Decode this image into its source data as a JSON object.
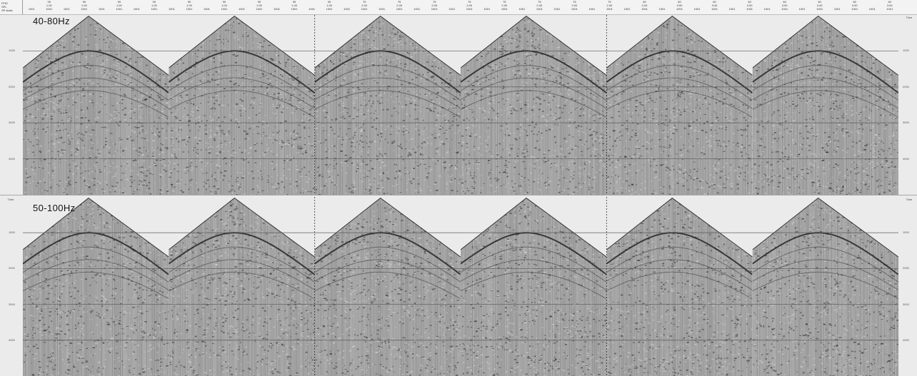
{
  "header": {
    "row_keys": [
      "FFID",
      "SPL",
      "SP static"
    ],
    "columns": [
      {
        "ffid": "",
        "spl": "",
        "sp_static": "1001"
      },
      {
        "ffid": "99",
        "spl": "1.00",
        "sp_static": "1001"
      },
      {
        "ffid": "",
        "spl": "",
        "sp_static": "1001"
      },
      {
        "ffid": "99",
        "spl": "1.00",
        "sp_static": "1001"
      },
      {
        "ffid": "",
        "spl": "",
        "sp_static": "1001"
      },
      {
        "ffid": "99",
        "spl": "1.00",
        "sp_static": "1001"
      },
      {
        "ffid": "",
        "spl": "",
        "sp_static": "1001"
      },
      {
        "ffid": "99",
        "spl": "1.00",
        "sp_static": "1001"
      },
      {
        "ffid": "",
        "spl": "",
        "sp_static": "1001"
      },
      {
        "ffid": "99",
        "spl": "1.00",
        "sp_static": "1001"
      },
      {
        "ffid": "",
        "spl": "",
        "sp_static": "1001"
      },
      {
        "ffid": "99",
        "spl": "1.00",
        "sp_static": "1001"
      },
      {
        "ffid": "",
        "spl": "",
        "sp_static": "1001"
      },
      {
        "ffid": "99",
        "spl": "1.00",
        "sp_static": "1001"
      },
      {
        "ffid": "",
        "spl": "",
        "sp_static": "1001"
      },
      {
        "ffid": "99",
        "spl": "1.00",
        "sp_static": "1001"
      },
      {
        "ffid": "",
        "spl": "",
        "sp_static": "1001"
      },
      {
        "ffid": "99",
        "spl": "1.00",
        "sp_static": "1001"
      },
      {
        "ffid": "",
        "spl": "",
        "sp_static": "1001"
      },
      {
        "ffid": "75",
        "spl": "2.00",
        "sp_static": "1001"
      },
      {
        "ffid": "",
        "spl": "",
        "sp_static": "1001"
      },
      {
        "ffid": "75",
        "spl": "2.00",
        "sp_static": "1001"
      },
      {
        "ffid": "",
        "spl": "",
        "sp_static": "1001"
      },
      {
        "ffid": "75",
        "spl": "2.00",
        "sp_static": "1001"
      },
      {
        "ffid": "",
        "spl": "",
        "sp_static": "1001"
      },
      {
        "ffid": "75",
        "spl": "2.00",
        "sp_static": "1001"
      },
      {
        "ffid": "",
        "spl": "",
        "sp_static": "1001"
      },
      {
        "ffid": "75",
        "spl": "2.00",
        "sp_static": "1001"
      },
      {
        "ffid": "",
        "spl": "",
        "sp_static": "1001"
      },
      {
        "ffid": "75",
        "spl": "2.00",
        "sp_static": "1001"
      },
      {
        "ffid": "",
        "spl": "",
        "sp_static": "1001"
      },
      {
        "ffid": "75",
        "spl": "2.00",
        "sp_static": "1001"
      },
      {
        "ffid": "",
        "spl": "",
        "sp_static": "1001"
      },
      {
        "ffid": "75",
        "spl": "2.00",
        "sp_static": "1001"
      },
      {
        "ffid": "",
        "spl": "",
        "sp_static": "1001"
      },
      {
        "ffid": "60",
        "spl": "3.00",
        "sp_static": "1001"
      },
      {
        "ffid": "",
        "spl": "",
        "sp_static": "1001"
      },
      {
        "ffid": "60",
        "spl": "3.00",
        "sp_static": "1001"
      },
      {
        "ffid": "",
        "spl": "",
        "sp_static": "1001"
      },
      {
        "ffid": "60",
        "spl": "3.00",
        "sp_static": "1001"
      },
      {
        "ffid": "",
        "spl": "",
        "sp_static": "1001"
      },
      {
        "ffid": "60",
        "spl": "3.00",
        "sp_static": "1001"
      },
      {
        "ffid": "",
        "spl": "",
        "sp_static": "1001"
      },
      {
        "ffid": "60",
        "spl": "3.00",
        "sp_static": "1001"
      },
      {
        "ffid": "",
        "spl": "",
        "sp_static": "1001"
      },
      {
        "ffid": "60",
        "spl": "3.00",
        "sp_static": "1001"
      },
      {
        "ffid": "",
        "spl": "",
        "sp_static": "1001"
      },
      {
        "ffid": "60",
        "spl": "3.00",
        "sp_static": "1001"
      },
      {
        "ffid": "",
        "spl": "",
        "sp_static": "1001"
      },
      {
        "ffid": "60",
        "spl": "3.00",
        "sp_static": "1001"
      }
    ]
  },
  "axis": {
    "label": "Time",
    "ticks": [
      "1000",
      "2000",
      "3000",
      "4000"
    ],
    "time_range_ms": [
      0,
      5000
    ]
  },
  "panels": [
    {
      "label": "40-80Hz"
    },
    {
      "label": "50-100Hz"
    }
  ],
  "colors": {
    "background": "#ebebeb",
    "gather_fill": "#a8a8a8",
    "wavelet_dark": "#2e2e2e",
    "wavelet_light": "#d6d6d6",
    "grid_line": "#555555",
    "divider": "#333333"
  }
}
